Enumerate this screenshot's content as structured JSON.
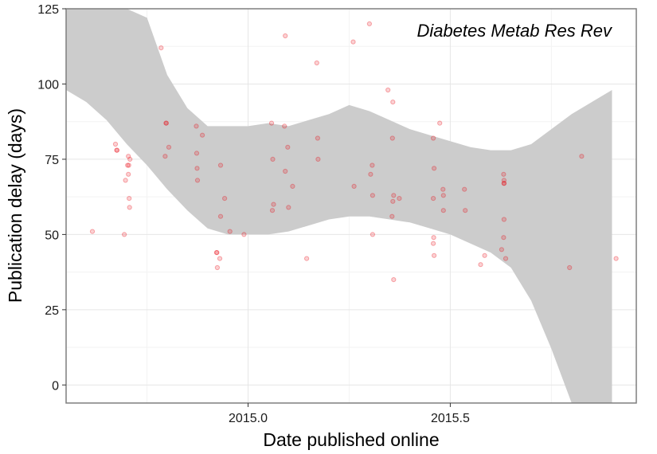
{
  "chart_data": {
    "type": "scatter",
    "title": "",
    "annotation": "Diabetes Metab Res Rev",
    "xlabel": "Date published online",
    "ylabel": "Publication delay (days)",
    "xlim": [
      2014.55,
      2015.96
    ],
    "ylim": [
      -6,
      125
    ],
    "x_ticks": [
      2015.0,
      2015.5
    ],
    "x_tick_labels": [
      "2015.0",
      "2015.5"
    ],
    "y_ticks": [
      0,
      25,
      50,
      75,
      100,
      125
    ],
    "y_tick_labels": [
      "0",
      "25",
      "50",
      "75",
      "100",
      "125"
    ],
    "grid": true,
    "legend": "none",
    "point_color": "#e8000b",
    "band_color": "#cccccc",
    "points": [
      [
        2014.615,
        51
      ],
      [
        2014.672,
        80
      ],
      [
        2014.675,
        78
      ],
      [
        2014.676,
        78
      ],
      [
        2014.694,
        50
      ],
      [
        2014.697,
        68
      ],
      [
        2014.702,
        73
      ],
      [
        2014.704,
        70
      ],
      [
        2014.705,
        73
      ],
      [
        2014.704,
        76
      ],
      [
        2014.706,
        62
      ],
      [
        2014.707,
        59
      ],
      [
        2014.708,
        75
      ],
      [
        2014.785,
        112
      ],
      [
        2014.795,
        76
      ],
      [
        2014.797,
        87
      ],
      [
        2014.798,
        87
      ],
      [
        2014.804,
        79
      ],
      [
        2014.872,
        86
      ],
      [
        2014.873,
        77
      ],
      [
        2014.874,
        72
      ],
      [
        2014.875,
        68
      ],
      [
        2014.887,
        83
      ],
      [
        2014.922,
        44
      ],
      [
        2014.923,
        44
      ],
      [
        2014.924,
        39
      ],
      [
        2014.93,
        42
      ],
      [
        2014.932,
        56
      ],
      [
        2014.932,
        73
      ],
      [
        2014.942,
        62
      ],
      [
        2014.955,
        51
      ],
      [
        2014.99,
        50
      ],
      [
        2015.058,
        87
      ],
      [
        2015.06,
        58
      ],
      [
        2015.061,
        75
      ],
      [
        2015.063,
        60
      ],
      [
        2015.092,
        116
      ],
      [
        2015.09,
        86
      ],
      [
        2015.092,
        71
      ],
      [
        2015.098,
        79
      ],
      [
        2015.1,
        59
      ],
      [
        2015.11,
        66
      ],
      [
        2015.145,
        42
      ],
      [
        2015.17,
        107
      ],
      [
        2015.172,
        82
      ],
      [
        2015.173,
        75
      ],
      [
        2015.26,
        114
      ],
      [
        2015.262,
        66
      ],
      [
        2015.3,
        120
      ],
      [
        2015.303,
        70
      ],
      [
        2015.307,
        73
      ],
      [
        2015.308,
        63
      ],
      [
        2015.308,
        50
      ],
      [
        2015.346,
        98
      ],
      [
        2015.358,
        94
      ],
      [
        2015.357,
        82
      ],
      [
        2015.356,
        56
      ],
      [
        2015.358,
        61
      ],
      [
        2015.36,
        63
      ],
      [
        2015.36,
        35
      ],
      [
        2015.374,
        62
      ],
      [
        2015.458,
        82
      ],
      [
        2015.458,
        62
      ],
      [
        2015.459,
        49
      ],
      [
        2015.46,
        72
      ],
      [
        2015.458,
        47
      ],
      [
        2015.46,
        43
      ],
      [
        2015.474,
        87
      ],
      [
        2015.482,
        65
      ],
      [
        2015.483,
        63
      ],
      [
        2015.483,
        58
      ],
      [
        2015.535,
        65
      ],
      [
        2015.537,
        58
      ],
      [
        2015.575,
        40
      ],
      [
        2015.585,
        43
      ],
      [
        2015.627,
        45
      ],
      [
        2015.632,
        70
      ],
      [
        2015.633,
        68
      ],
      [
        2015.633,
        67
      ],
      [
        2015.633,
        67
      ],
      [
        2015.633,
        55
      ],
      [
        2015.632,
        49
      ],
      [
        2015.637,
        42
      ],
      [
        2015.795,
        39
      ],
      [
        2015.825,
        76
      ],
      [
        2015.91,
        42
      ]
    ],
    "band": {
      "x": [
        2014.55,
        2014.6,
        2014.65,
        2014.7,
        2014.75,
        2014.8,
        2014.85,
        2014.9,
        2014.95,
        2015.0,
        2015.05,
        2015.1,
        2015.15,
        2015.2,
        2015.25,
        2015.3,
        2015.35,
        2015.4,
        2015.45,
        2015.5,
        2015.55,
        2015.6,
        2015.65,
        2015.7,
        2015.75,
        2015.8,
        2015.85,
        2015.9
      ],
      "upper": [
        125,
        125,
        125,
        125,
        122,
        103,
        92,
        86,
        86,
        86,
        87,
        86,
        88,
        90,
        93,
        91,
        88,
        85,
        83,
        81,
        79,
        78,
        78,
        80,
        85,
        90,
        94,
        98
      ],
      "lower": [
        98,
        94,
        88,
        80,
        73,
        65,
        58,
        52,
        50,
        50,
        50,
        51,
        53,
        55,
        56,
        56,
        55,
        54,
        52,
        50,
        47,
        44,
        39,
        28,
        12,
        -6,
        -6,
        -6
      ]
    }
  }
}
